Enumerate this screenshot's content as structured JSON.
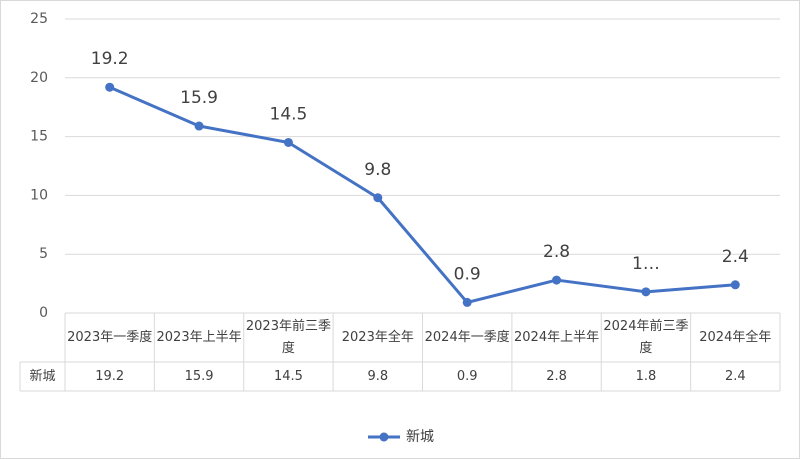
{
  "chart_data": {
    "type": "line",
    "categories": [
      "2023年一季度",
      "2023年上半年",
      "2023年前三季度",
      "2023年全年",
      "2024年一季度",
      "2024年上半年",
      "2024年前三季度",
      "2024年全年"
    ],
    "series": [
      {
        "name": "新城",
        "color": "#4472c4",
        "values": [
          19.2,
          15.9,
          14.5,
          9.8,
          0.9,
          2.8,
          1.8,
          2.4
        ],
        "value_labels": [
          "19.2",
          "15.9",
          "14.5",
          "9.8",
          "0.9",
          "2.8",
          "1…",
          "2.4"
        ]
      }
    ],
    "ylim": [
      0,
      25
    ],
    "yticks": [
      0,
      5,
      10,
      15,
      20,
      25
    ],
    "grid": true,
    "legend": "bottom"
  }
}
